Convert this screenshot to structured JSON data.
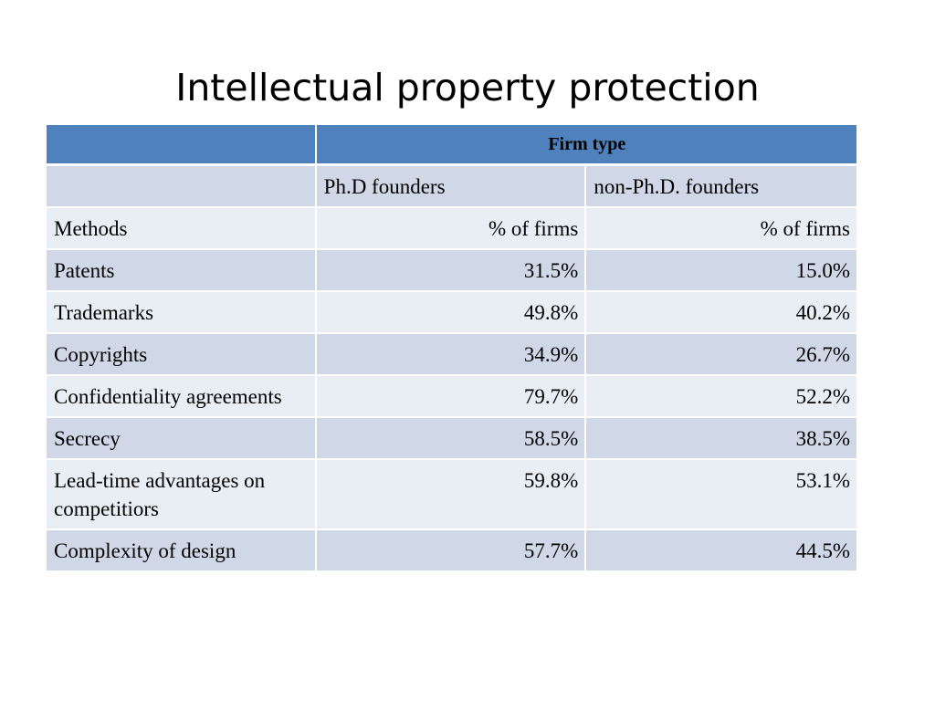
{
  "title": "Intellectual property protection",
  "table": {
    "group_header": "Firm type",
    "column_headers": [
      "Ph.D founders",
      "non-Ph.D. founders"
    ],
    "unit_row": {
      "label": "Methods",
      "phd": "% of firms",
      "non_phd": "% of firms"
    },
    "rows": [
      {
        "method": "Patents",
        "phd": "31.5%",
        "non_phd": "15.0%"
      },
      {
        "method": "Trademarks",
        "phd": "49.8%",
        "non_phd": "40.2%"
      },
      {
        "method": "Copyrights",
        "phd": "34.9%",
        "non_phd": "26.7%"
      },
      {
        "method": "Confidentiality agreements",
        "phd": "79.7%",
        "non_phd": "52.2%"
      },
      {
        "method": "Secrecy",
        "phd": "58.5%",
        "non_phd": "38.5%"
      },
      {
        "method": "Lead-time advantages on competitiors",
        "phd": "59.8%",
        "non_phd": "53.1%"
      },
      {
        "method": "Complexity of design",
        "phd": "57.7%",
        "non_phd": "44.5%"
      }
    ]
  },
  "colors": {
    "header": "#4f81bd",
    "band_dark": "#d0d8e8",
    "band_light": "#e9edf4"
  }
}
